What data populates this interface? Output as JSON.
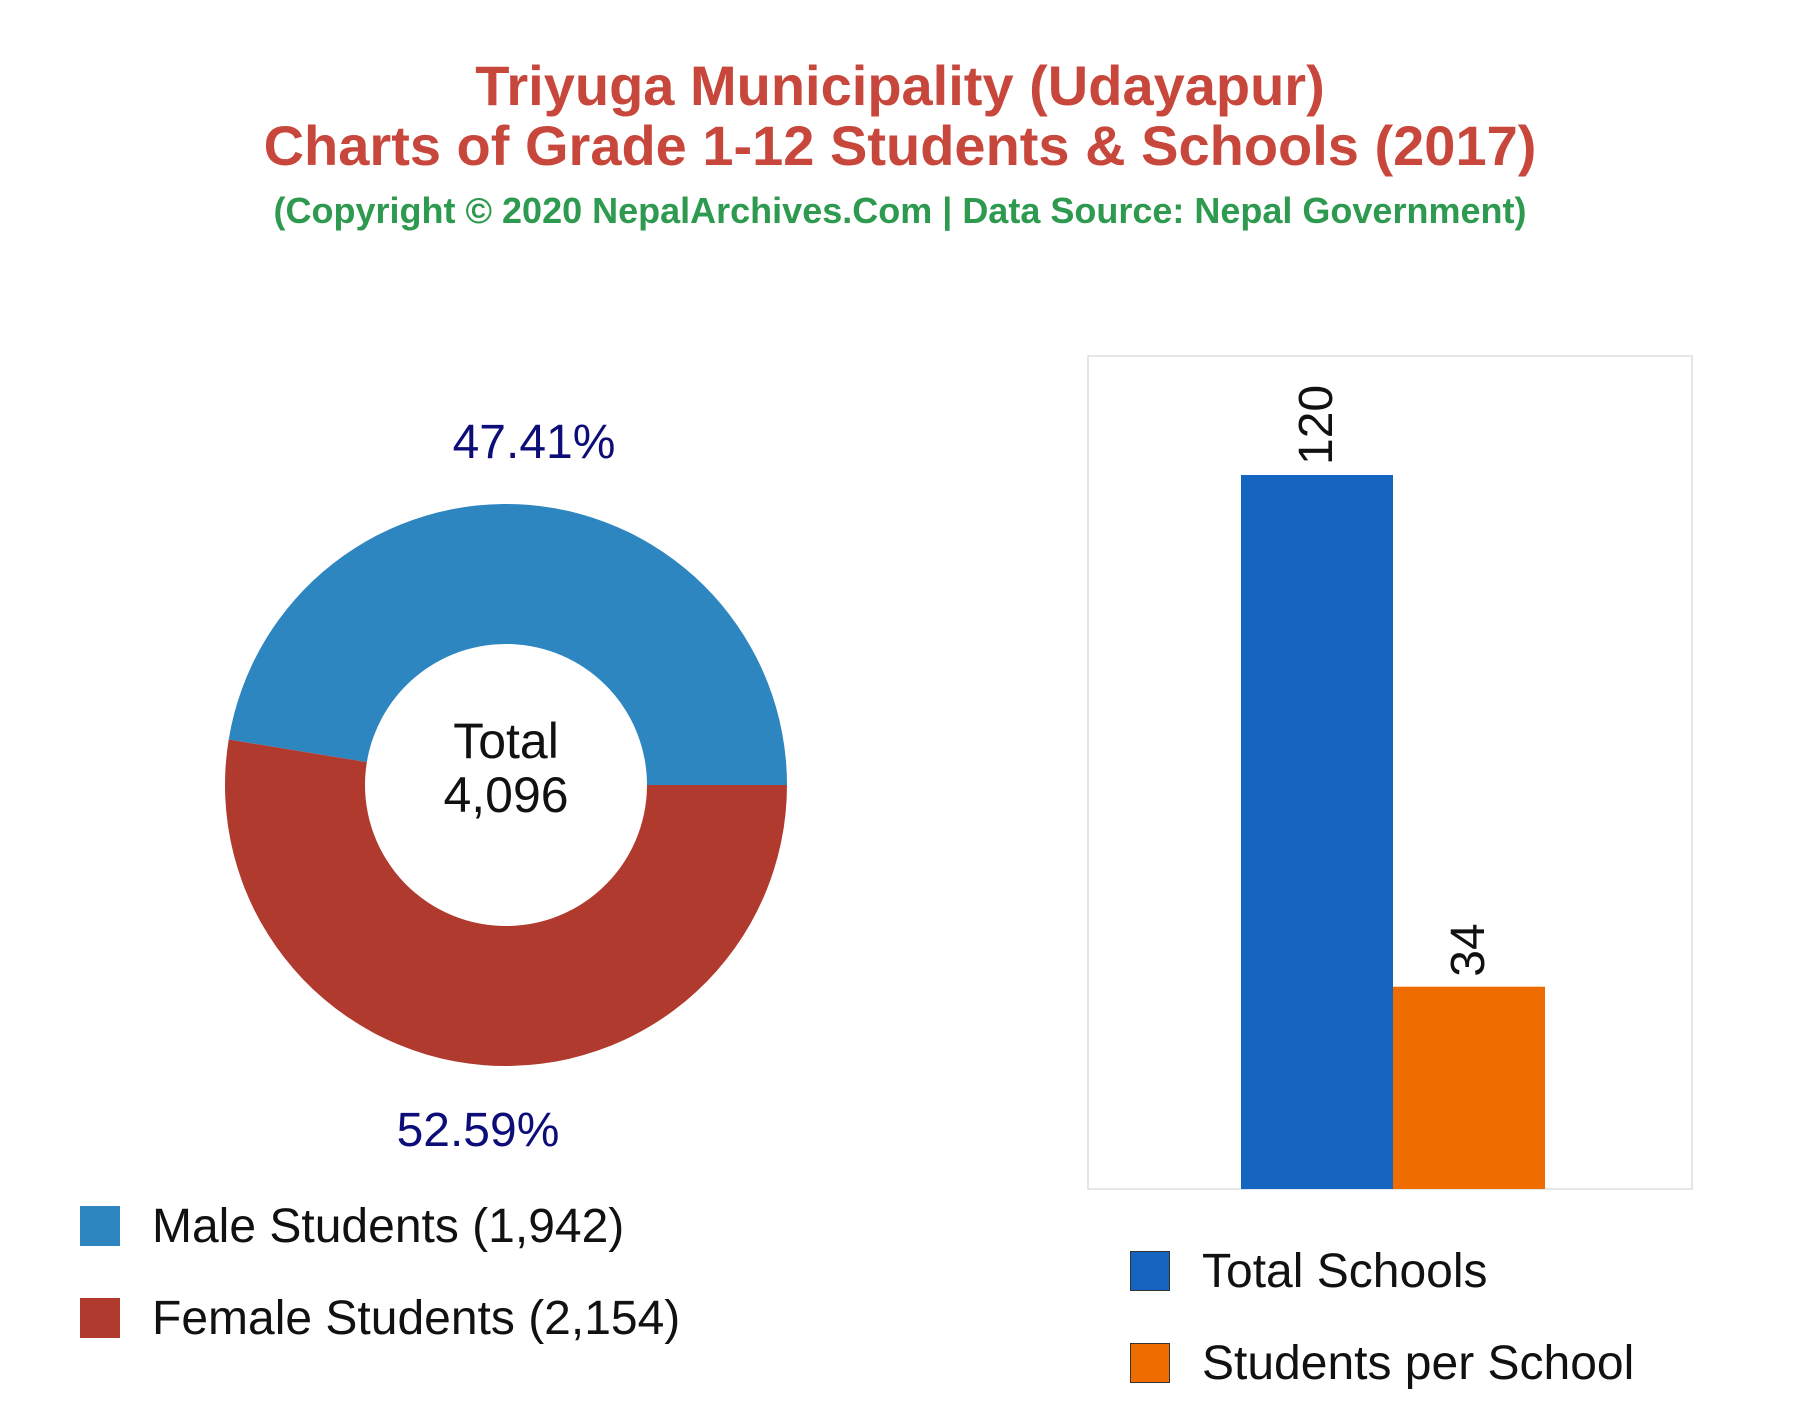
{
  "header": {
    "title_line1": "Triyuga Municipality (Udayapur)",
    "title_line2": "Charts of Grade 1-12 Students & Schools (2017)",
    "subtitle": "(Copyright © 2020 NepalArchives.Com | Data Source: Nepal Government)"
  },
  "colors": {
    "title": "#c8473c",
    "subtitle": "#2e9a4f",
    "male": "#2e86c1",
    "female": "#b03a2e",
    "schools": "#1565c0",
    "students_per_school": "#ef6c00",
    "pct_label": "#0d0d7a"
  },
  "chart_data": [
    {
      "type": "pie",
      "style": "donut",
      "center_label": "Total",
      "center_value": "4,096",
      "slices": [
        {
          "key": "male",
          "label": "Male Students (1,942)",
          "value": 1942,
          "percent_label": "47.41%",
          "color": "#2e86c1"
        },
        {
          "key": "female",
          "label": "Female Students (2,154)",
          "value": 2154,
          "percent_label": "52.59%",
          "color": "#b03a2e"
        }
      ]
    },
    {
      "type": "bar",
      "categories": [
        "Total Schools",
        "Students per School"
      ],
      "values": [
        120,
        34
      ],
      "value_labels": [
        "120",
        "34"
      ],
      "colors": [
        "#1565c0",
        "#ef6c00"
      ],
      "ylim": [
        0,
        140
      ],
      "grid": false,
      "legend": [
        {
          "label": "Total Schools",
          "color": "#1565c0"
        },
        {
          "label": "Students per School",
          "color": "#ef6c00"
        }
      ]
    }
  ]
}
